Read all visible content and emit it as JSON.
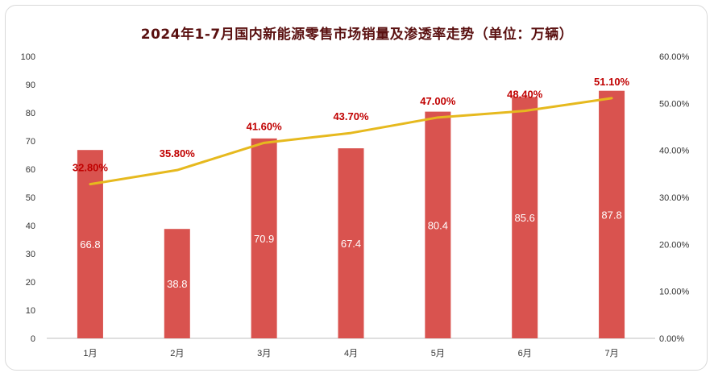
{
  "chart_data": {
    "type": "bar",
    "title": "2024年1-7月国内新能源零售市场销量及渗透率走势（单位：万辆）",
    "categories": [
      "1月",
      "2月",
      "3月",
      "4月",
      "5月",
      "6月",
      "7月"
    ],
    "series": [
      {
        "type": "bar",
        "axis": "left",
        "values": [
          66.8,
          38.8,
          70.9,
          67.4,
          80.4,
          85.6,
          87.8
        ],
        "labels": [
          "66.8",
          "38.8",
          "70.9",
          "67.4",
          "80.4",
          "85.6",
          "87.8"
        ],
        "color": "#d9534f"
      },
      {
        "type": "line",
        "axis": "right",
        "values": [
          32.8,
          35.8,
          41.6,
          43.7,
          47.0,
          48.4,
          51.1
        ],
        "labels": [
          "32.80%",
          "35.80%",
          "41.60%",
          "43.70%",
          "47.00%",
          "48.40%",
          "51.10%"
        ],
        "color": "#e6b91e",
        "label_color": "#c00000"
      }
    ],
    "y_left": {
      "min": 0,
      "max": 100,
      "ticks": [
        "0",
        "10",
        "20",
        "30",
        "40",
        "50",
        "60",
        "70",
        "80",
        "90",
        "100"
      ]
    },
    "y_right": {
      "min": 0,
      "max": 60,
      "ticks": [
        "0.00%",
        "10.00%",
        "20.00%",
        "30.00%",
        "40.00%",
        "50.00%",
        "60.00%"
      ]
    },
    "grid": false,
    "legend": "none"
  }
}
